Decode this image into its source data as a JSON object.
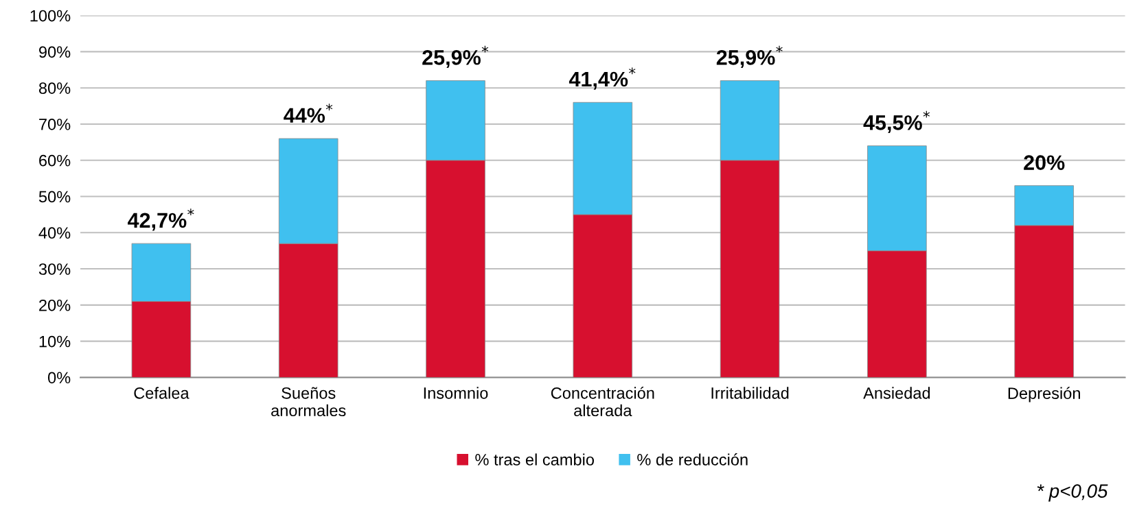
{
  "chart_data": {
    "type": "bar",
    "stacked": true,
    "categories": [
      "Cefalea",
      "Sueños\nanormales",
      "Insomnio",
      "Concentración\nalterada",
      "Irritabilidad",
      "Ansiedad",
      "Depresión"
    ],
    "series": [
      {
        "name": "% tras el cambio",
        "color": "#d7102f",
        "values": [
          21,
          37,
          60,
          45,
          60,
          35,
          42
        ]
      },
      {
        "name": "% de reducción",
        "color": "#40c0ef",
        "values": [
          16,
          29,
          22,
          31,
          22,
          29,
          11
        ]
      }
    ],
    "ylim": [
      0,
      100
    ],
    "yticks": [
      {
        "value": 0,
        "label": "0%"
      },
      {
        "value": 10,
        "label": "10%"
      },
      {
        "value": 20,
        "label": "20%"
      },
      {
        "value": 30,
        "label": "30%"
      },
      {
        "value": 40,
        "label": "40%"
      },
      {
        "value": 50,
        "label": "50%"
      },
      {
        "value": 60,
        "label": "60%"
      },
      {
        "value": 70,
        "label": "70%"
      },
      {
        "value": 80,
        "label": "80%"
      },
      {
        "value": 90,
        "label": "90%"
      },
      {
        "value": 100,
        "label": "100%"
      }
    ],
    "grid": "y",
    "legend": "bottom",
    "annotations": [
      {
        "text": "42,7%$^{*}$",
        "x": "Cefalea",
        "y": 37
      },
      {
        "text": "44%$^{*}$",
        "x": "Sueños\nanormales",
        "y": 66
      },
      {
        "text": "25,9%$^{*}$",
        "x": "Insomnio",
        "y": 82
      },
      {
        "text": "41,4%$^{*}$",
        "x": "Concentración\nalterada",
        "y": 76
      },
      {
        "text": "25,9%$^{*}$",
        "x": "Irritabilidad",
        "y": 82
      },
      {
        "text": "45,5%$^{*}$",
        "x": "Ansiedad",
        "y": 64
      },
      {
        "text": "20%",
        "x": "Depresión",
        "y": 53
      },
      "* p<0,05"
    ]
  }
}
